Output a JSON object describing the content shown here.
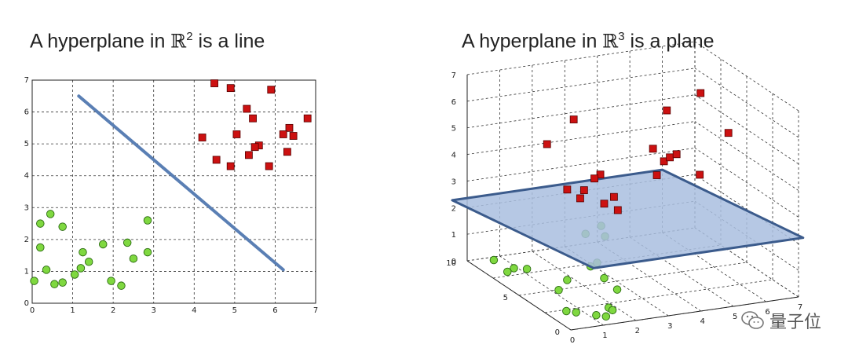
{
  "titles": {
    "left": {
      "prefix": "A hyperplane in ",
      "space": "ℝ",
      "power": "2",
      "suffix": " is a line"
    },
    "right": {
      "prefix": "A hyperplane in ",
      "space": "ℝ",
      "power": "3",
      "suffix": " is a plane"
    }
  },
  "watermark": {
    "text": "量子位",
    "icon": "wechat-icon"
  },
  "colors": {
    "red": "#cc1111",
    "green": "#7fd840",
    "line": "#5a7fb4",
    "plane_fill": "#a9bedf",
    "plane_edge": "#3b5b8c"
  },
  "chart_data": [
    {
      "type": "scatter",
      "title": "A hyperplane in ℝ2 is a line",
      "xlim": [
        0,
        7
      ],
      "ylim": [
        0,
        7
      ],
      "xticks": [
        "0",
        "1",
        "2",
        "3",
        "4",
        "5",
        "6",
        "7"
      ],
      "yticks": [
        "0",
        "1",
        "2",
        "3",
        "4",
        "5",
        "6",
        "7"
      ],
      "grid": true,
      "series": [
        {
          "marker": "square",
          "color": "#cc1111",
          "points": [
            [
              4.5,
              6.9
            ],
            [
              4.9,
              6.75
            ],
            [
              5.9,
              6.7
            ],
            [
              5.3,
              6.1
            ],
            [
              5.45,
              5.8
            ],
            [
              6.8,
              5.8
            ],
            [
              6.35,
              5.5
            ],
            [
              5.05,
              5.3
            ],
            [
              6.2,
              5.3
            ],
            [
              6.45,
              5.25
            ],
            [
              4.2,
              5.2
            ],
            [
              5.6,
              4.95
            ],
            [
              5.5,
              4.9
            ],
            [
              6.3,
              4.75
            ],
            [
              5.35,
              4.65
            ],
            [
              4.55,
              4.5
            ],
            [
              5.85,
              4.3
            ],
            [
              4.9,
              4.3
            ]
          ]
        },
        {
          "marker": "circle",
          "color": "#7fd840",
          "points": [
            [
              0.45,
              2.8
            ],
            [
              0.2,
              2.5
            ],
            [
              0.75,
              2.4
            ],
            [
              2.85,
              2.6
            ],
            [
              0.2,
              1.75
            ],
            [
              1.75,
              1.85
            ],
            [
              2.35,
              1.9
            ],
            [
              1.25,
              1.6
            ],
            [
              2.85,
              1.6
            ],
            [
              1.4,
              1.3
            ],
            [
              2.5,
              1.4
            ],
            [
              1.2,
              1.1
            ],
            [
              0.35,
              1.05
            ],
            [
              1.05,
              0.9
            ],
            [
              0.05,
              0.7
            ],
            [
              1.95,
              0.7
            ],
            [
              0.55,
              0.6
            ],
            [
              0.75,
              0.65
            ],
            [
              2.2,
              0.55
            ]
          ]
        }
      ],
      "line": {
        "x": [
          1.15,
          6.2
        ],
        "y": [
          6.5,
          1.05
        ]
      }
    },
    {
      "type": "scatter3d",
      "title": "A hyperplane in ℝ3 is a plane",
      "xlim": [
        0,
        7
      ],
      "ylim": [
        0,
        10
      ],
      "zlim": [
        0,
        7
      ],
      "xticks": [
        "0",
        "1",
        "2",
        "3",
        "4",
        "5",
        "6",
        "7"
      ],
      "yticks": [
        "0",
        "5",
        "10"
      ],
      "zticks": [
        "0",
        "1",
        "2",
        "3",
        "4",
        "5",
        "6",
        "7"
      ],
      "grid": true,
      "plane": {
        "z": 2.2
      },
      "series": [
        {
          "marker": "square",
          "color": "#cc1111",
          "points": [
            [
              2,
              6,
              6
            ],
            [
              3.5,
              2,
              5.2
            ],
            [
              4,
              3,
              5
            ],
            [
              3.8,
              4,
              5.1
            ],
            [
              2.5,
              5,
              4.1
            ],
            [
              3.6,
              3,
              4.4
            ],
            [
              4.6,
              2,
              4.5
            ],
            [
              5.8,
              3,
              5.6
            ],
            [
              5.9,
              6,
              6.3
            ],
            [
              5.5,
              8,
              5.2
            ],
            [
              1.5,
              7,
              4.9
            ],
            [
              2,
              4,
              4.3
            ],
            [
              1.8,
              6,
              3.4
            ],
            [
              2,
              5,
              3.6
            ],
            [
              2.3,
              4,
              3.3
            ],
            [
              2.4,
              3,
              3.3
            ],
            [
              2.6,
              4,
              3.5
            ],
            [
              2.2,
              6,
              3.0
            ],
            [
              5.8,
              8,
              3.5
            ]
          ]
        },
        {
          "marker": "circle",
          "color": "#7fd840",
          "points": [
            [
              0.5,
              9,
              0.2
            ],
            [
              0.8,
              8,
              0.1
            ],
            [
              0.6,
              8,
              0.0
            ],
            [
              1.2,
              8,
              0.0
            ],
            [
              2.4,
              5,
              0.8
            ],
            [
              2.2,
              5,
              0.7
            ],
            [
              3.0,
              8,
              1.0
            ],
            [
              3.6,
              8,
              0.8
            ],
            [
              3.8,
              9,
              0.9
            ],
            [
              2.3,
              4,
              0.5
            ],
            [
              0.9,
              4,
              0.3
            ],
            [
              1.8,
              2,
              0.0
            ],
            [
              0.5,
              2,
              0.1
            ],
            [
              0.8,
              2,
              0.0
            ],
            [
              1.1,
              1,
              0.1
            ],
            [
              1.6,
              1,
              0.2
            ],
            [
              1.4,
              1,
              0.0
            ],
            [
              2.7,
              4,
              0.0
            ],
            [
              1.8,
              6,
              0.0
            ]
          ]
        }
      ]
    }
  ]
}
